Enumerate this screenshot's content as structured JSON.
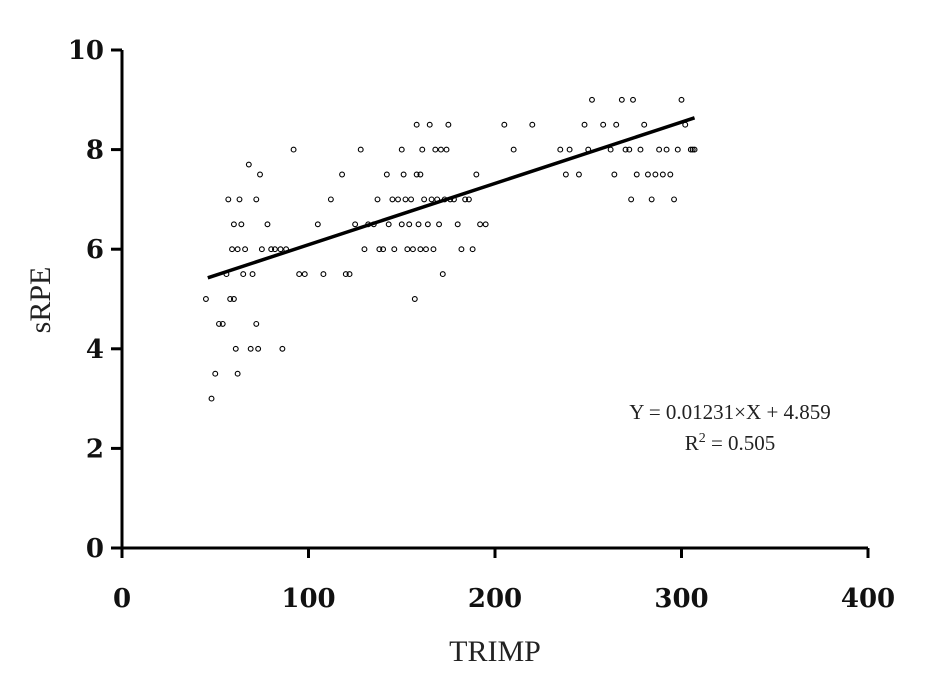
{
  "chart_data": {
    "type": "scatter",
    "title": "",
    "xlabel": "TRIMP",
    "ylabel": "sRPE",
    "xlim": [
      0,
      400
    ],
    "ylim": [
      0,
      10
    ],
    "xticks": [
      "0",
      "100",
      "200",
      "300",
      "400"
    ],
    "yticks": [
      "0",
      "2",
      "4",
      "6",
      "8",
      "10"
    ],
    "grid": false,
    "legend": "none",
    "series": [
      {
        "x": [
          45,
          48,
          50,
          52,
          54,
          56,
          57,
          58,
          59,
          60,
          60,
          61,
          62,
          62,
          63,
          64,
          65,
          66,
          68,
          69,
          70,
          72,
          72,
          73,
          74,
          75,
          78,
          80,
          82,
          85,
          86,
          88,
          92,
          95,
          98,
          105,
          108,
          112,
          118,
          120,
          122,
          125,
          128,
          130,
          132,
          135,
          137,
          138,
          140,
          142,
          143,
          145,
          146,
          148,
          150,
          150,
          151,
          152,
          153,
          154,
          155,
          156,
          157,
          158,
          158,
          159,
          160,
          160,
          161,
          162,
          163,
          164,
          165,
          166,
          167,
          168,
          169,
          170,
          171,
          172,
          173,
          174,
          175,
          176,
          178,
          180,
          182,
          184,
          186,
          188,
          190,
          192,
          195,
          205,
          210,
          220,
          235,
          238,
          240,
          245,
          248,
          250,
          252,
          258,
          262,
          264,
          265,
          268,
          270,
          272,
          273,
          274,
          276,
          278,
          280,
          282,
          284,
          286,
          288,
          290,
          292,
          294,
          296,
          298,
          300,
          302,
          305,
          306,
          307
        ],
        "y": [
          5.0,
          3.0,
          3.5,
          4.5,
          4.5,
          5.5,
          7.0,
          5.0,
          6.0,
          5.0,
          6.5,
          4.0,
          6.0,
          3.5,
          7.0,
          6.5,
          5.5,
          6.0,
          7.7,
          4.0,
          5.5,
          4.5,
          7.0,
          4.0,
          7.5,
          6.0,
          6.5,
          6.0,
          6.0,
          6.0,
          4.0,
          6.0,
          8.0,
          5.5,
          5.5,
          6.5,
          5.5,
          7.0,
          7.5,
          5.5,
          5.5,
          6.5,
          8.0,
          6.0,
          6.5,
          6.5,
          7.0,
          6.0,
          6.0,
          7.5,
          6.5,
          7.0,
          6.0,
          7.0,
          8.0,
          6.5,
          7.5,
          7.0,
          6.0,
          6.5,
          7.0,
          6.0,
          5.0,
          8.5,
          7.5,
          6.5,
          6.0,
          7.5,
          8.0,
          7.0,
          6.0,
          6.5,
          8.5,
          7.0,
          6.0,
          8.0,
          7.0,
          6.5,
          8.0,
          5.5,
          7.0,
          8.0,
          8.5,
          7.0,
          7.0,
          6.5,
          6.0,
          7.0,
          7.0,
          6.0,
          7.5,
          6.5,
          6.5,
          8.5,
          8.0,
          8.5,
          8.0,
          7.5,
          8.0,
          7.5,
          8.5,
          8.0,
          9.0,
          8.5,
          8.0,
          7.5,
          8.5,
          9.0,
          8.0,
          8.0,
          7.0,
          9.0,
          7.5,
          8.0,
          8.5,
          7.5,
          7.0,
          7.5,
          8.0,
          7.5,
          8.0,
          7.5,
          7.0,
          8.0,
          9.0,
          8.5,
          8.0,
          8.0,
          8.0
        ]
      }
    ],
    "fit": {
      "slope": 0.01231,
      "intercept": 4.859,
      "x_range": [
        46,
        307
      ]
    },
    "annotations": {
      "equation": "Y = 0.01231×X + 4.859",
      "r2_label": "R",
      "r2_sup": "2",
      "r2_value": " = 0.505"
    }
  }
}
